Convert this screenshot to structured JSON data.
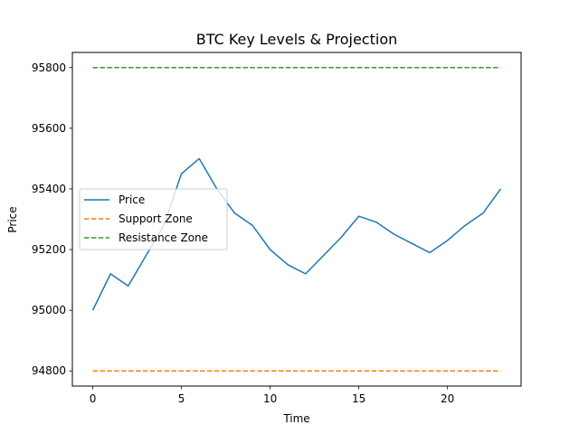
{
  "chart_data": {
    "type": "line",
    "title": "BTC Key Levels & Projection",
    "xlabel": "Time",
    "ylabel": "Price",
    "xlim": [
      -1.15,
      24.15
    ],
    "ylim": [
      94750,
      95850
    ],
    "xticks": [
      0,
      5,
      10,
      15,
      20
    ],
    "yticks": [
      94800,
      95000,
      95200,
      95400,
      95600,
      95800
    ],
    "legend_position": "center-left",
    "series": [
      {
        "name": "Price",
        "color": "#1f77b4",
        "style": "solid",
        "x": [
          0,
          1,
          2,
          3,
          4,
          5,
          6,
          7,
          8,
          9,
          10,
          11,
          12,
          13,
          14,
          15,
          16,
          17,
          18,
          19,
          20,
          21,
          22,
          23
        ],
        "values": [
          95000,
          95120,
          95080,
          95180,
          95280,
          95450,
          95500,
          95400,
          95320,
          95280,
          95200,
          95150,
          95120,
          95180,
          95240,
          95310,
          95290,
          95250,
          95220,
          95190,
          95230,
          95280,
          95320,
          95400
        ]
      },
      {
        "name": "Support Zone",
        "color": "#ff7f0e",
        "style": "dashed",
        "x": [
          0,
          23
        ],
        "values": [
          94800,
          94800
        ]
      },
      {
        "name": "Resistance Zone",
        "color": "#2ca02c",
        "style": "dashed",
        "x": [
          0,
          23
        ],
        "values": [
          95800,
          95800
        ]
      }
    ]
  }
}
